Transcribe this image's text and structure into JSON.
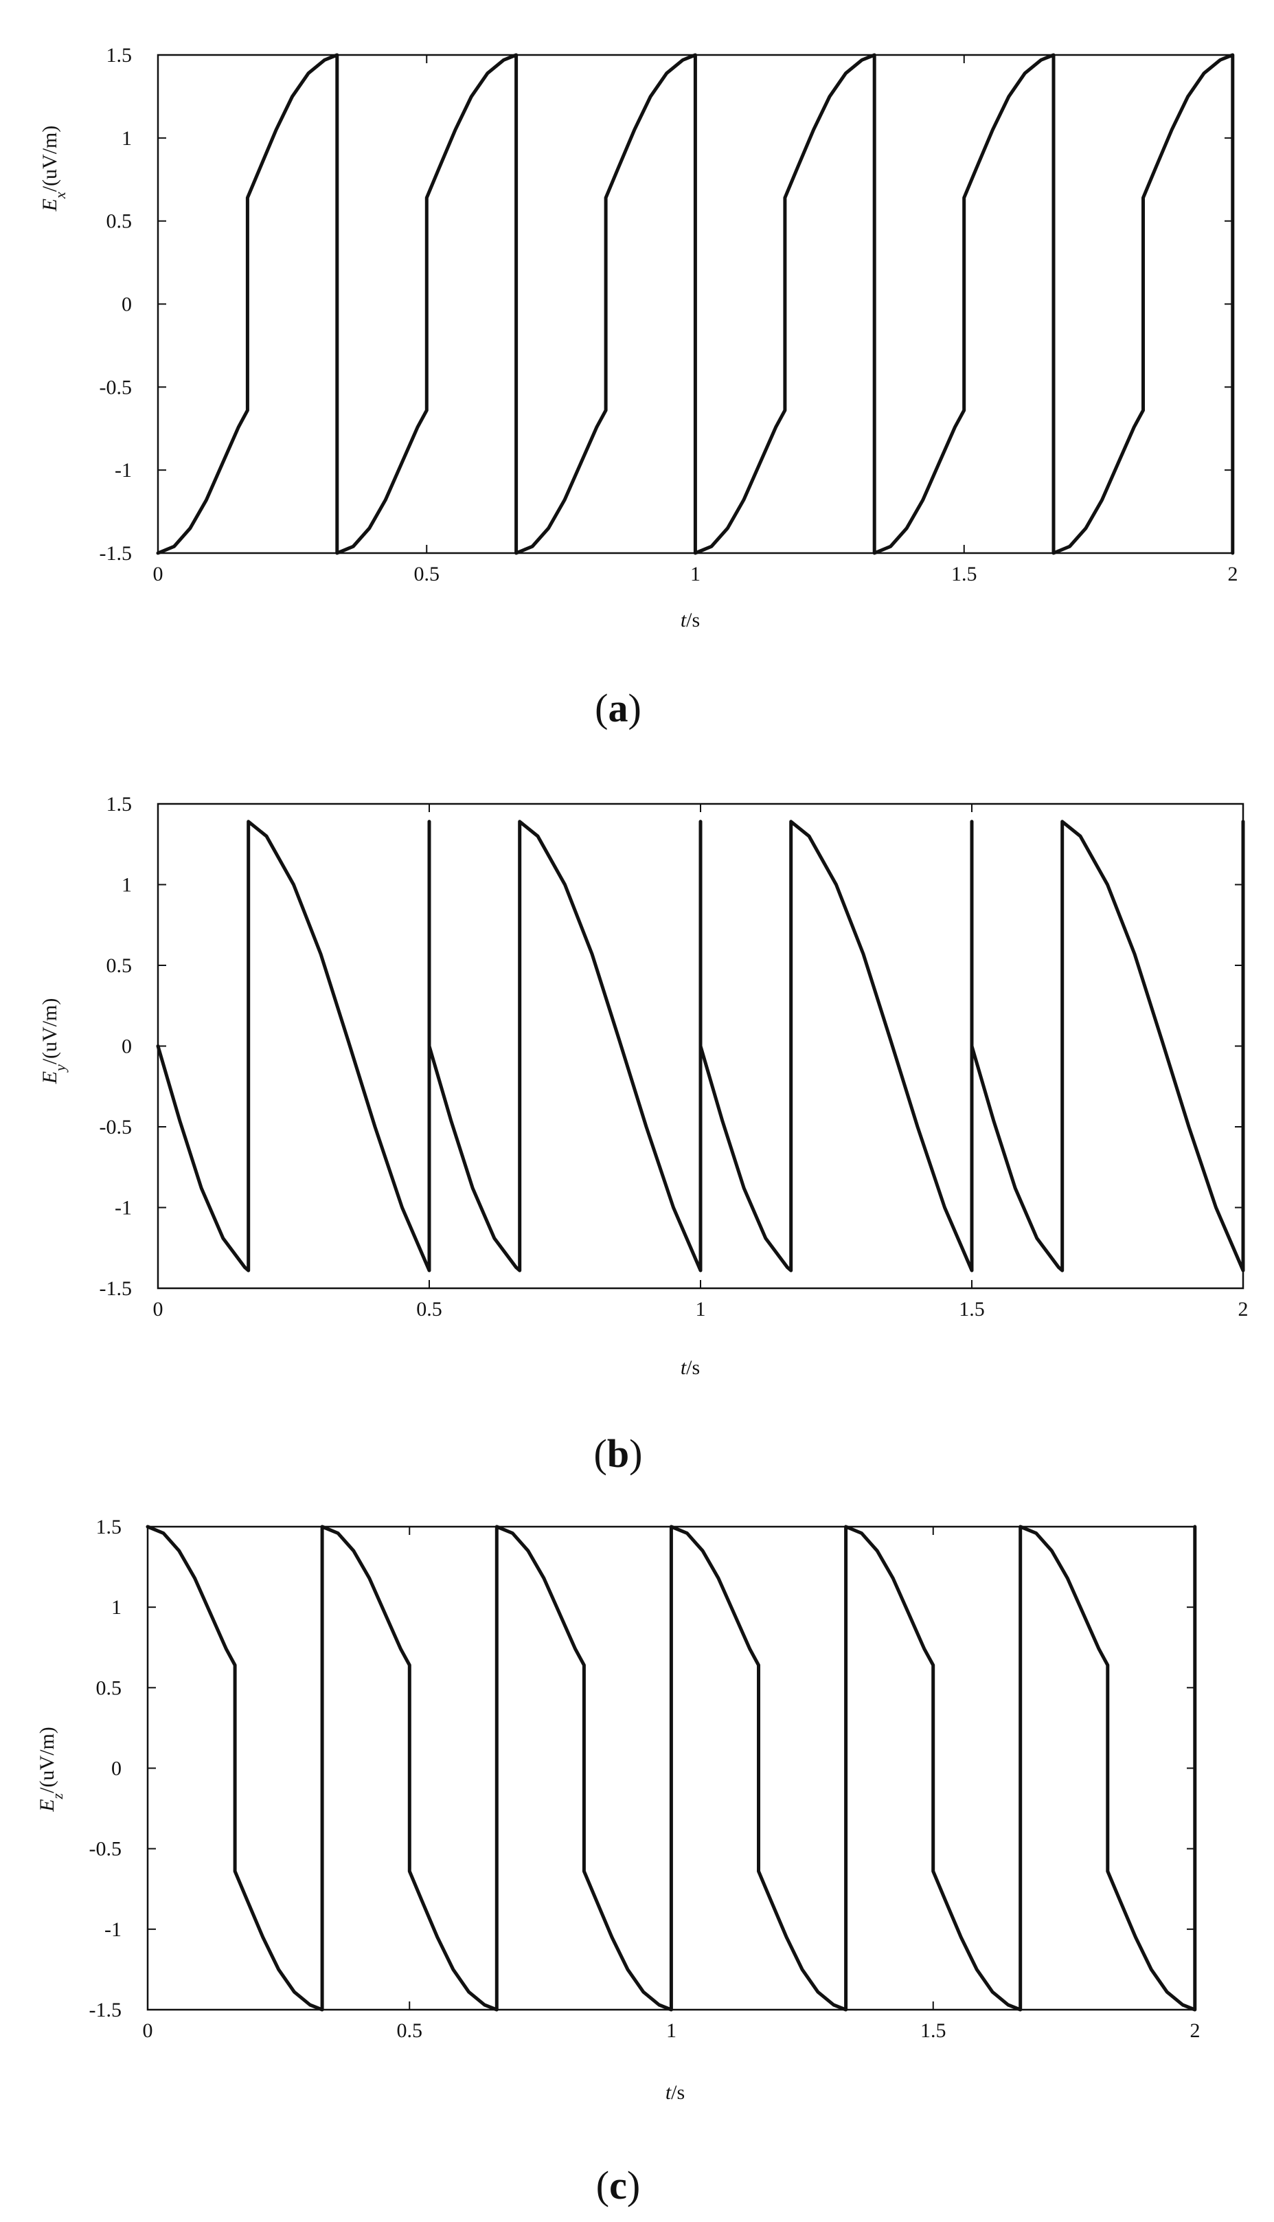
{
  "panels": [
    {
      "caption_open": "(",
      "caption_letter": "a",
      "caption_close": ")",
      "ylabel_symbol": "E",
      "ylabel_sub": "x",
      "ylabel_unit": "/(uV/m)",
      "xlabel_symbol": "t",
      "xlabel_unit": "/s"
    },
    {
      "caption_open": "(",
      "caption_letter": "b",
      "caption_close": ")",
      "ylabel_symbol": "E",
      "ylabel_sub": "y",
      "ylabel_unit": "/(uV/m)",
      "xlabel_symbol": "t",
      "xlabel_unit": "/s"
    },
    {
      "caption_open": "(",
      "caption_letter": "c",
      "caption_close": ")",
      "ylabel_symbol": "E",
      "ylabel_sub": "z",
      "ylabel_unit": "/(uV/m)",
      "xlabel_symbol": "t",
      "xlabel_unit": "/s"
    }
  ],
  "chart_data": [
    {
      "type": "line",
      "xlabel": "t/s",
      "ylabel": "E_x/(uV/m)",
      "xlim": [
        0,
        2
      ],
      "ylim": [
        -1.5,
        1.5
      ],
      "xticks": [
        0,
        0.5,
        1,
        1.5,
        2
      ],
      "xtick_labels": [
        "0",
        "0.5",
        "1",
        "1.5",
        "2"
      ],
      "yticks": [
        1.5,
        1,
        0.5,
        0,
        -0.5,
        -1,
        -1.5
      ],
      "ytick_labels": [
        "1.5",
        "1",
        "0.5",
        "0",
        "-0.5",
        "-1",
        "-1.5"
      ],
      "grid": false,
      "color": "#111111",
      "series": [
        {
          "x": [
            0,
            0.03,
            0.06,
            0.09,
            0.12,
            0.15,
            0.1667,
            0.1667,
            0.19,
            0.22,
            0.25,
            0.28,
            0.31,
            0.3333,
            0.3333
          ],
          "values": [
            -1.5,
            -1.46,
            -1.35,
            -1.18,
            -0.96,
            -0.74,
            -0.64,
            0.64,
            0.82,
            1.05,
            1.25,
            1.39,
            1.47,
            1.5,
            -1.5
          ]
        }
      ]
    },
    {
      "type": "line",
      "xlabel": "t/s",
      "ylabel": "E_y/(uV/m)",
      "xlim": [
        0,
        2
      ],
      "ylim": [
        -1.5,
        1.5
      ],
      "xticks": [
        0,
        0.5,
        1,
        1.5,
        2
      ],
      "xtick_labels": [
        "0",
        "0.5",
        "1",
        "1.5",
        "2"
      ],
      "yticks": [
        1.5,
        1,
        0.5,
        0,
        -0.5,
        -1,
        -1.5
      ],
      "ytick_labels": [
        "1.5",
        "1",
        "0.5",
        "0",
        "-0.5",
        "-1",
        "-1.5"
      ],
      "grid": false,
      "color": "#111111",
      "series": [
        {
          "x": [
            0,
            0.04,
            0.08,
            0.12,
            0.16,
            0.1667,
            0.1667,
            0.2,
            0.25,
            0.3,
            0.35,
            0.4,
            0.45,
            0.5,
            0.5
          ],
          "values": [
            0,
            -0.46,
            -0.88,
            -1.19,
            -1.37,
            -1.39,
            1.39,
            1.3,
            1.0,
            0.57,
            0.04,
            -0.5,
            -1.0,
            -1.39,
            1.39
          ]
        }
      ]
    },
    {
      "type": "line",
      "xlabel": "t/s",
      "ylabel": "E_z/(uV/m)",
      "xlim": [
        0,
        2
      ],
      "ylim": [
        -1.5,
        1.5
      ],
      "xticks": [
        0,
        0.5,
        1,
        1.5,
        2
      ],
      "xtick_labels": [
        "0",
        "0.5",
        "1",
        "1.5",
        "2"
      ],
      "yticks": [
        1.5,
        1,
        0.5,
        0,
        -0.5,
        -1,
        -1.5
      ],
      "ytick_labels": [
        "1.5",
        "1",
        "0.5",
        "0",
        "-0.5",
        "-1",
        "-1.5"
      ],
      "grid": false,
      "color": "#111111",
      "series": [
        {
          "x": [
            0,
            0.03,
            0.06,
            0.09,
            0.12,
            0.15,
            0.1667,
            0.1667,
            0.19,
            0.22,
            0.25,
            0.28,
            0.31,
            0.3333,
            0.3333
          ],
          "values": [
            1.5,
            1.46,
            1.35,
            1.18,
            0.96,
            0.74,
            0.64,
            -0.64,
            -0.82,
            -1.05,
            -1.25,
            -1.39,
            -1.47,
            -1.5,
            1.5
          ]
        }
      ]
    }
  ]
}
